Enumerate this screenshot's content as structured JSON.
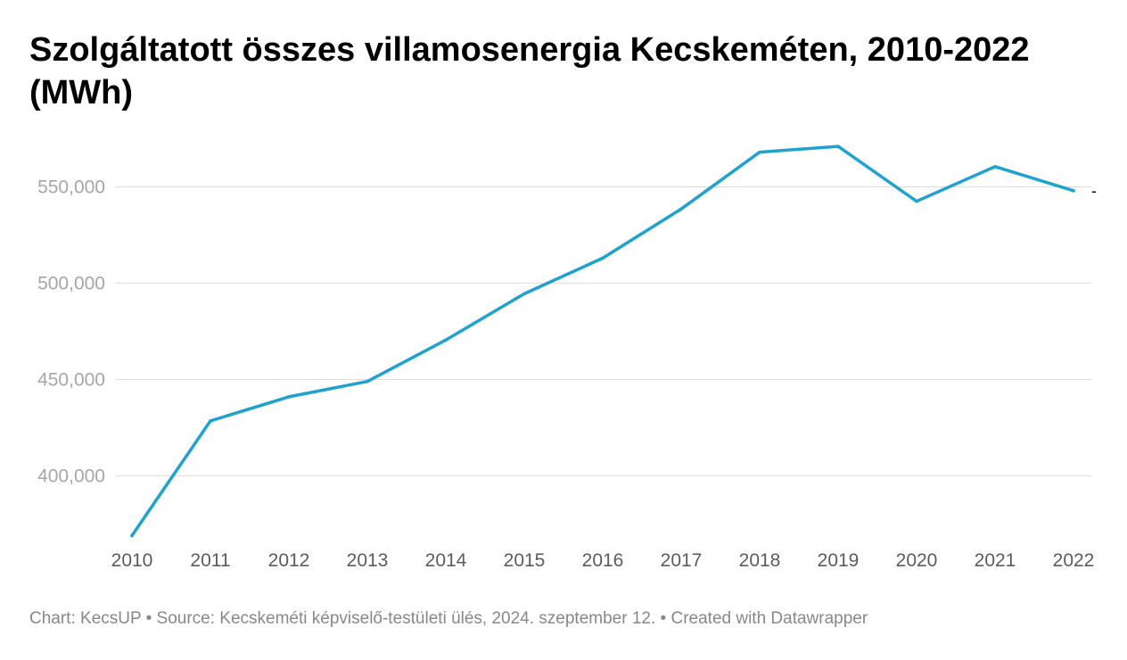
{
  "footer": {
    "chart_by": "Chart: KecsUP",
    "separator": " • ",
    "source": "Source: Kecskeméti képviselő-testületi ülés, 2024. szeptember 12.",
    "created_with": "Created with Datawrapper"
  },
  "colors": {
    "line": "#1fa2d0",
    "grid": "#dddddd",
    "ytick": "#a6a6a6",
    "xtick": "#5c5c5c"
  },
  "chart_data": {
    "type": "line",
    "title": "Szolgáltatott összes villamosenergia Kecskeméten, 2010-2022 (MWh)",
    "xlabel": "",
    "ylabel": "",
    "x": [
      "2010",
      "2011",
      "2012",
      "2013",
      "2014",
      "2015",
      "2016",
      "2017",
      "2018",
      "2019",
      "2020",
      "2021",
      "2022"
    ],
    "series": [
      {
        "values": [
          369000,
          428500,
          441000,
          449000,
          470500,
          494500,
          513000,
          538500,
          568000,
          571000,
          542500,
          560500,
          548000
        ]
      }
    ],
    "ylim": [
      369000,
      576000
    ],
    "y_ticks": [
      400000,
      450000,
      500000,
      550000
    ],
    "y_tick_labels": [
      "400,000",
      "450,000",
      "500,000",
      "550,000"
    ],
    "end_label": "-",
    "grid": true,
    "legend": "none"
  }
}
